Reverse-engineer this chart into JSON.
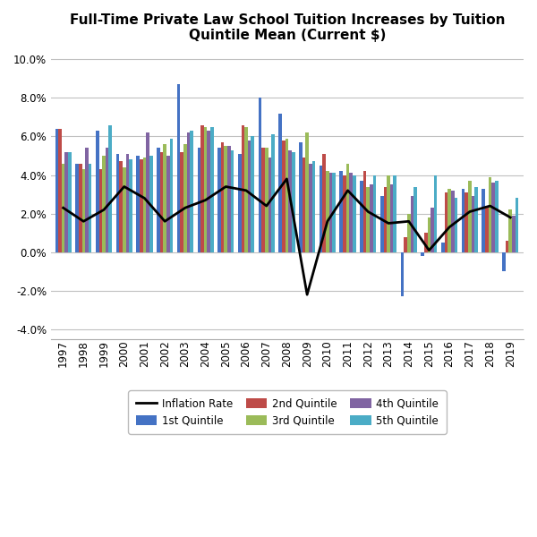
{
  "title": "Full-Time Private Law School Tuition Increases by Tuition\nQuintile Mean (Current $)",
  "years": [
    1997,
    1998,
    1999,
    2000,
    2001,
    2002,
    2003,
    2004,
    2005,
    2006,
    2007,
    2008,
    2009,
    2010,
    2011,
    2012,
    2013,
    2014,
    2015,
    2016,
    2017,
    2018,
    2019
  ],
  "q1": [
    0.064,
    0.046,
    0.063,
    0.051,
    0.05,
    0.054,
    0.087,
    0.054,
    0.054,
    0.051,
    0.08,
    0.072,
    0.057,
    0.045,
    0.042,
    0.037,
    0.029,
    -0.023,
    -0.002,
    0.005,
    0.033,
    0.033,
    -0.01
  ],
  "q2": [
    0.064,
    0.046,
    0.043,
    0.047,
    0.048,
    0.052,
    0.052,
    0.066,
    0.057,
    0.066,
    0.054,
    0.058,
    0.049,
    0.051,
    0.04,
    0.042,
    0.034,
    0.008,
    0.01,
    0.031,
    0.031,
    0.024,
    0.006
  ],
  "q3": [
    0.046,
    0.043,
    0.05,
    0.044,
    0.049,
    0.056,
    0.056,
    0.065,
    0.055,
    0.065,
    0.054,
    0.059,
    0.062,
    0.042,
    0.046,
    0.034,
    0.04,
    0.02,
    0.018,
    0.033,
    0.037,
    0.039,
    0.022
  ],
  "q4": [
    0.052,
    0.054,
    0.054,
    0.051,
    0.062,
    0.05,
    0.062,
    0.063,
    0.055,
    0.058,
    0.049,
    0.053,
    0.046,
    0.041,
    0.041,
    0.035,
    0.035,
    0.029,
    0.023,
    0.032,
    0.029,
    0.036,
    0.019
  ],
  "q5": [
    0.052,
    0.046,
    0.066,
    0.048,
    0.05,
    0.059,
    0.063,
    0.065,
    0.053,
    0.06,
    0.061,
    0.052,
    0.047,
    0.041,
    0.04,
    0.04,
    0.04,
    0.034,
    0.04,
    0.028,
    0.034,
    0.037,
    0.028
  ],
  "inflation": [
    0.023,
    0.016,
    0.022,
    0.034,
    0.028,
    0.016,
    0.023,
    0.027,
    0.034,
    0.032,
    0.024,
    0.038,
    -0.022,
    0.016,
    0.032,
    0.021,
    0.015,
    0.016,
    0.001,
    0.013,
    0.021,
    0.024,
    0.018
  ],
  "color_q1": "#4472C4",
  "color_q2": "#BE4B48",
  "color_q3": "#9BBB59",
  "color_q4": "#8064A2",
  "color_q5": "#4BACC6",
  "color_inflation": "#000000",
  "ylim_min": -0.045,
  "ylim_max": 0.105,
  "yticks": [
    -0.04,
    -0.02,
    0.0,
    0.02,
    0.04,
    0.06,
    0.08,
    0.1
  ],
  "background_color": "#FFFFFF",
  "grid_color": "#C0C0C0",
  "bar_width": 0.16,
  "figwidth": 6.0,
  "figheight": 6.0,
  "dpi": 100
}
